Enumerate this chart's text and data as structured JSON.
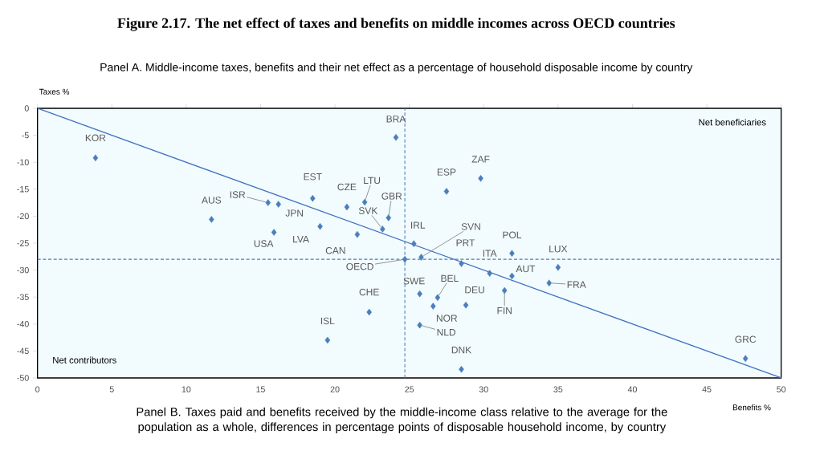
{
  "chart_data": {
    "type": "scatter",
    "title": "Figure 2.17. The net effect of taxes and benefits on middle incomes across OECD countries",
    "subtitle": "Panel A. Middle-income taxes, benefits and their net effect as a percentage of household disposable income by country",
    "xlabel": "Benefits %",
    "ylabel": "Taxes %",
    "xlim": [
      0,
      50
    ],
    "ylim": [
      -50,
      0
    ],
    "xticks": [
      0,
      5,
      10,
      15,
      20,
      25,
      30,
      35,
      40,
      45,
      50
    ],
    "yticks": [
      0,
      -5,
      -10,
      -15,
      -20,
      -25,
      -30,
      -35,
      -40,
      -45,
      -50
    ],
    "grid": false,
    "series": [
      {
        "marker": "diamond",
        "color": "#4a7ebb",
        "x": [
          3.9,
          24.1,
          11.7,
          15.5,
          16.2,
          18.5,
          20.8,
          22.0,
          23.6,
          23.2,
          19.0,
          15.9,
          21.5,
          25.3,
          24.7,
          22.3,
          19.5,
          27.5,
          29.8,
          25.8,
          28.5,
          30.4,
          31.9,
          35.0,
          31.9,
          34.4,
          31.4,
          25.7,
          26.9,
          28.8,
          26.6,
          25.7,
          28.5,
          47.6
        ],
        "values": [
          -9.2,
          -5.4,
          -20.6,
          -17.5,
          -17.8,
          -16.7,
          -18.3,
          -17.4,
          -20.3,
          -22.4,
          -21.9,
          -23.0,
          -23.4,
          -25.1,
          -28.0,
          -37.8,
          -43.0,
          -15.4,
          -13.0,
          -27.6,
          -28.8,
          -30.6,
          -26.9,
          -29.5,
          -31.1,
          -32.4,
          -33.8,
          -34.4,
          -35.1,
          -36.5,
          -36.7,
          -40.2,
          -48.4,
          -46.4
        ]
      },
      {
        "type": "line",
        "color": "#4472c4",
        "x": [
          0,
          50
        ],
        "values": [
          0,
          -50
        ]
      }
    ],
    "ref_lines": [
      {
        "axis": "x",
        "value": 24.7,
        "color": "#4a7ebb",
        "line_style": "dashed"
      },
      {
        "axis": "y",
        "value": -28.0,
        "color": "#4a7ebb",
        "line_style": "dashed"
      }
    ],
    "annotations": [
      "Net beneficiaries",
      "Net contributors",
      "Panel B. Taxes paid and benefits received by the middle-income class relative to the average for the population as a whole, differences in percentage points of disposable household income, by country",
      {
        "text": "KOR",
        "x": 3.9,
        "y": -9.2
      },
      {
        "text": "BRA",
        "x": 24.1,
        "y": -5.4
      },
      {
        "text": "AUS",
        "x": 11.7,
        "y": -20.6
      },
      {
        "text": "ISR",
        "x": 15.5,
        "y": -17.5
      },
      {
        "text": "JPN",
        "x": 16.2,
        "y": -17.8
      },
      {
        "text": "EST",
        "x": 18.5,
        "y": -16.7
      },
      {
        "text": "CZE",
        "x": 20.8,
        "y": -18.3
      },
      {
        "text": "LTU",
        "x": 22.0,
        "y": -17.4
      },
      {
        "text": "GBR",
        "x": 23.6,
        "y": -20.3
      },
      {
        "text": "SVK",
        "x": 23.2,
        "y": -22.4
      },
      {
        "text": "LVA",
        "x": 19.0,
        "y": -21.9
      },
      {
        "text": "USA",
        "x": 15.9,
        "y": -23.0
      },
      {
        "text": "CAN",
        "x": 21.5,
        "y": -23.4
      },
      {
        "text": "IRL",
        "x": 25.3,
        "y": -25.1
      },
      {
        "text": "OECD",
        "x": 24.7,
        "y": -28.0
      },
      {
        "text": "CHE",
        "x": 22.3,
        "y": -37.8
      },
      {
        "text": "ISL",
        "x": 19.5,
        "y": -43.0
      },
      {
        "text": "ESP",
        "x": 27.5,
        "y": -15.4
      },
      {
        "text": "ZAF",
        "x": 29.8,
        "y": -13.0
      },
      {
        "text": "SVN",
        "x": 25.8,
        "y": -27.6
      },
      {
        "text": "PRT",
        "x": 28.5,
        "y": -28.8
      },
      {
        "text": "ITA",
        "x": 30.4,
        "y": -30.6
      },
      {
        "text": "POL",
        "x": 31.9,
        "y": -26.9
      },
      {
        "text": "LUX",
        "x": 35.0,
        "y": -29.5
      },
      {
        "text": "AUT",
        "x": 31.9,
        "y": -31.1
      },
      {
        "text": "FRA",
        "x": 34.4,
        "y": -32.4
      },
      {
        "text": "FIN",
        "x": 31.4,
        "y": -33.8
      },
      {
        "text": "SWE",
        "x": 25.7,
        "y": -34.4
      },
      {
        "text": "BEL",
        "x": 26.9,
        "y": -35.1
      },
      {
        "text": "DEU",
        "x": 28.8,
        "y": -36.5
      },
      {
        "text": "NOR",
        "x": 26.6,
        "y": -36.7
      },
      {
        "text": "NLD",
        "x": 25.7,
        "y": -40.2
      },
      {
        "text": "DNK",
        "x": 28.5,
        "y": -48.4
      },
      {
        "text": "GRC",
        "x": 47.6,
        "y": -46.4
      }
    ]
  }
}
